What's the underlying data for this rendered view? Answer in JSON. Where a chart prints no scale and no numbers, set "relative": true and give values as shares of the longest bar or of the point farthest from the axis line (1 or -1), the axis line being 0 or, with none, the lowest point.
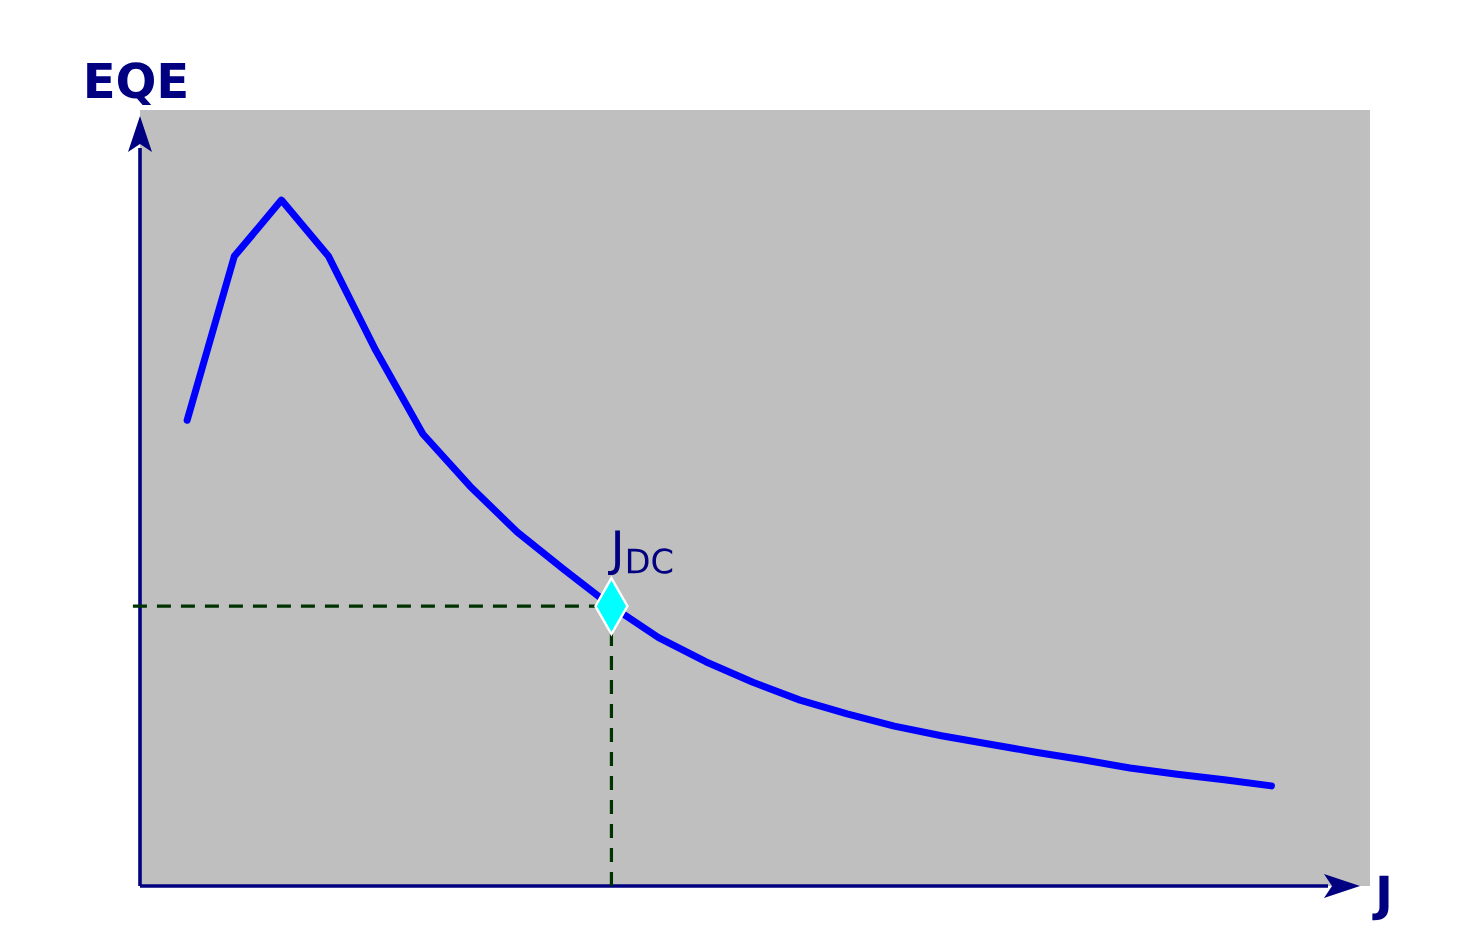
{
  "chart_data": {
    "type": "line",
    "relative": true,
    "xlabel": "J",
    "ylabel": "EQE",
    "categories": [
      null,
      null,
      null,
      null,
      null,
      null,
      null,
      null,
      null,
      null,
      null,
      null,
      null,
      null,
      null,
      null,
      null,
      null,
      null,
      null,
      null,
      null,
      null,
      null
    ],
    "series": [
      {
        "color": "#0000ff",
        "values": [
          0.679,
          0.918,
          1.0,
          0.918,
          0.781,
          0.659,
          0.583,
          0.516,
          0.461,
          0.408,
          0.362,
          0.327,
          0.297,
          0.271,
          0.251,
          0.233,
          0.219,
          0.207,
          0.195,
          0.184,
          0.172,
          0.163,
          0.155,
          0.146
        ]
      }
    ],
    "ref_lines": [
      {
        "axis": "y",
        "value": 0.408,
        "color": "#003300",
        "line_style": "dashed"
      }
    ],
    "annotations": [
      "J$_{DC}$"
    ]
  }
}
